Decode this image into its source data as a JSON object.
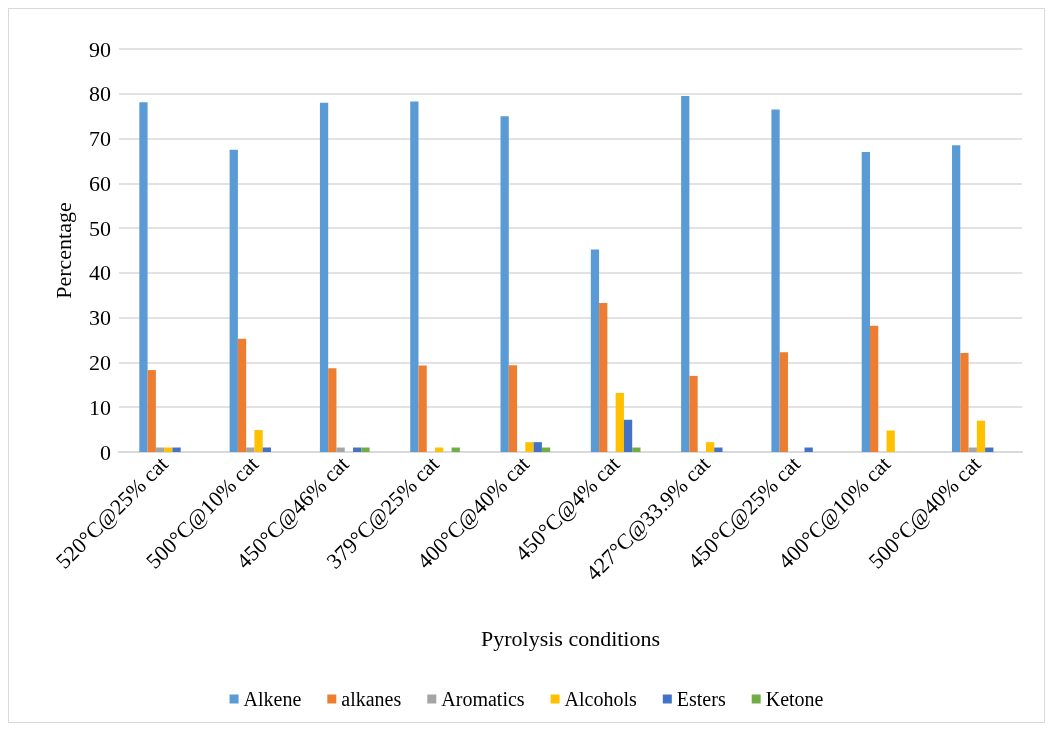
{
  "chart_data": {
    "type": "bar",
    "xlabel": "Pyrolysis conditions",
    "ylabel": "Percentage",
    "categories": [
      "520°C@25% cat",
      "500°C@10% cat",
      "450°C@46% cat",
      "379°C@25% cat",
      "400°C@40% cat",
      "450°C@4% cat",
      "427°C@33.9% cat",
      "450°C@25% cat",
      "400°C@10% cat",
      "500°C@40% cat"
    ],
    "series": [
      {
        "name": "Alkene",
        "color": "#5b9bd5",
        "values": [
          78.1,
          67.5,
          78,
          78.3,
          75,
          45.2,
          79.5,
          76.5,
          67,
          68.5
        ]
      },
      {
        "name": "alkanes",
        "color": "#ed7d31",
        "values": [
          18.3,
          25.3,
          18.7,
          19.3,
          19.4,
          33.3,
          17,
          22.3,
          28.2,
          22.1
        ]
      },
      {
        "name": "Aromatics",
        "color": "#a5a5a5",
        "values": [
          1,
          1,
          1,
          null,
          null,
          null,
          null,
          null,
          null,
          1
        ]
      },
      {
        "name": "Alcohols",
        "color": "#ffc000",
        "values": [
          1,
          4.9,
          null,
          1,
          2.2,
          13.2,
          2.2,
          null,
          4.8,
          7
        ]
      },
      {
        "name": "Esters",
        "color": "#4472c4",
        "values": [
          1,
          1,
          1,
          null,
          2.2,
          7.2,
          1,
          1,
          null,
          1
        ]
      },
      {
        "name": "Ketone",
        "color": "#70ad47",
        "values": [
          null,
          null,
          1,
          1,
          1,
          1,
          null,
          null,
          null,
          null
        ]
      }
    ],
    "ylim": [
      0,
      90
    ],
    "yticks": [
      0,
      10,
      20,
      30,
      40,
      50,
      60,
      70,
      80,
      90
    ],
    "grid": "y",
    "legend": "bottom"
  }
}
